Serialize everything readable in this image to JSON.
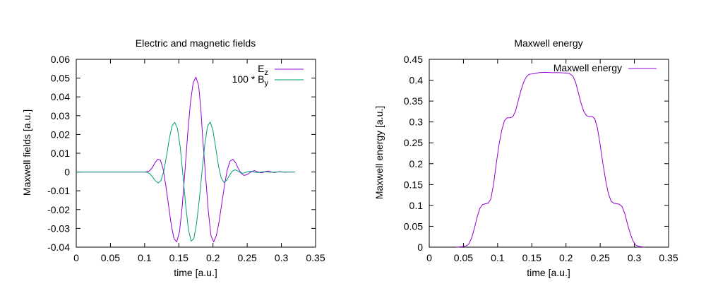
{
  "chart_data": [
    {
      "type": "line",
      "title": "Electric and magnetic fields",
      "xlabel": "time [a.u.]",
      "ylabel": "Maxwell fields [a.u.]",
      "xlim": [
        0,
        0.35
      ],
      "ylim": [
        -0.04,
        0.06
      ],
      "xticks": [
        0,
        0.05,
        0.1,
        0.15,
        0.2,
        0.25,
        0.3,
        0.35
      ],
      "xtick_labels": [
        "0",
        "0.05",
        "0.1",
        "0.15",
        "0.2",
        "0.25",
        "0.3",
        "0.35"
      ],
      "yticks": [
        -0.04,
        -0.03,
        -0.02,
        -0.01,
        0,
        0.01,
        0.02,
        0.03,
        0.04,
        0.05,
        0.06
      ],
      "ytick_labels": [
        "-0.04",
        "-0.03",
        "-0.02",
        "-0.01",
        "0",
        "0.01",
        "0.02",
        "0.03",
        "0.04",
        "0.05",
        "0.06"
      ],
      "legend_position": "top-right",
      "series": [
        {
          "name": "E",
          "name_subscript": "z",
          "color": "#9400d3",
          "x": [
            0,
            0.1,
            0.103,
            0.107,
            0.111,
            0.115,
            0.119,
            0.123,
            0.127,
            0.131,
            0.135,
            0.139,
            0.143,
            0.147,
            0.151,
            0.155,
            0.159,
            0.163,
            0.167,
            0.171,
            0.175,
            0.179,
            0.182,
            0.185,
            0.189,
            0.193,
            0.197,
            0.201,
            0.205,
            0.209,
            0.213,
            0.217,
            0.221,
            0.225,
            0.229,
            0.233,
            0.237,
            0.241,
            0.245,
            0.249,
            0.253,
            0.257,
            0.261,
            0.265,
            0.269,
            0.273,
            0.277,
            0.281,
            0.285,
            0.289,
            0.293,
            0.297,
            0.301,
            0.305,
            0.309,
            0.313,
            0.317,
            0.32
          ],
          "y": [
            0,
            0,
            0.0002,
            0.0006,
            0.0022,
            0.0048,
            0.0068,
            0.0064,
            0.0017,
            -0.0072,
            -0.0178,
            -0.0283,
            -0.0355,
            -0.0372,
            -0.0317,
            -0.0182,
            0.0006,
            0.0204,
            0.037,
            0.0475,
            0.0505,
            0.046,
            0.0345,
            0.0178,
            -0.0016,
            -0.0203,
            -0.0339,
            -0.0372,
            -0.0337,
            -0.0262,
            -0.0163,
            -0.0066,
            0.0014,
            0.0058,
            0.0068,
            0.005,
            0.0019,
            -0.0006,
            -0.0018,
            -0.0015,
            -0.0006,
            0.0004,
            0.0007,
            0.0002,
            -0.0004,
            -0.0003,
            0.0003,
            0.0005,
            0.0001,
            -0.0003,
            -0.0001,
            0.0002,
            0.0001,
            -0.0001,
            0,
            0,
            0,
            0
          ]
        },
        {
          "name": "100 * B",
          "name_subscript": "y",
          "color": "#009e73",
          "x": [
            0,
            0.1,
            0.104,
            0.108,
            0.112,
            0.116,
            0.12,
            0.124,
            0.128,
            0.132,
            0.136,
            0.14,
            0.144,
            0.148,
            0.152,
            0.156,
            0.16,
            0.164,
            0.168,
            0.172,
            0.176,
            0.18,
            0.184,
            0.188,
            0.192,
            0.196,
            0.2,
            0.204,
            0.208,
            0.212,
            0.216,
            0.22,
            0.224,
            0.228,
            0.232,
            0.236,
            0.24,
            0.244,
            0.248,
            0.252,
            0.256,
            0.26,
            0.264,
            0.268,
            0.272,
            0.276,
            0.28,
            0.284,
            0.288,
            0.292,
            0.296,
            0.3,
            0.304,
            0.308,
            0.312,
            0.316,
            0.32
          ],
          "y": [
            0,
            0,
            -0.0002,
            -0.001,
            -0.0028,
            -0.0048,
            -0.0058,
            -0.0045,
            0.0005,
            0.0085,
            0.0175,
            0.0245,
            0.0265,
            0.0232,
            0.0135,
            -0.0015,
            -0.0175,
            -0.0305,
            -0.0368,
            -0.0355,
            -0.0272,
            -0.0145,
            0.0005,
            0.0145,
            0.0245,
            0.0266,
            0.022,
            0.0128,
            0.0032,
            -0.0032,
            -0.0055,
            -0.0044,
            -0.0018,
            0.0004,
            0.0012,
            0.0006,
            -0.0003,
            -0.0006,
            -0.0002,
            0.0003,
            0.0004,
            0,
            -0.0003,
            -0.0002,
            0.0001,
            0.0002,
            0,
            -0.0001,
            -0.0001,
            0,
            0.0001,
            0,
            0,
            0,
            0,
            0,
            0
          ]
        }
      ]
    },
    {
      "type": "line",
      "title": "Maxwell energy",
      "xlabel": "time [a.u.]",
      "ylabel": "Maxwell energy [a.u.]",
      "xlim": [
        0,
        0.35
      ],
      "ylim": [
        0,
        0.45
      ],
      "xticks": [
        0,
        0.05,
        0.1,
        0.15,
        0.2,
        0.25,
        0.3,
        0.35
      ],
      "xtick_labels": [
        "0",
        "0.05",
        "0.1",
        "0.15",
        "0.2",
        "0.25",
        "0.3",
        "0.35"
      ],
      "yticks": [
        0,
        0.05,
        0.1,
        0.15,
        0.2,
        0.25,
        0.3,
        0.35,
        0.4,
        0.45
      ],
      "ytick_labels": [
        "0",
        "0.05",
        "0.1",
        "0.15",
        "0.2",
        "0.25",
        "0.3",
        "0.35",
        "0.4",
        "0.45"
      ],
      "legend_position": "top-right",
      "series": [
        {
          "name": "Maxwell energy",
          "name_subscript": "",
          "color": "#9400d3",
          "x": [
            0.04,
            0.048,
            0.054,
            0.058,
            0.062,
            0.066,
            0.07,
            0.074,
            0.078,
            0.082,
            0.086,
            0.09,
            0.094,
            0.098,
            0.102,
            0.106,
            0.11,
            0.114,
            0.118,
            0.122,
            0.126,
            0.13,
            0.134,
            0.138,
            0.142,
            0.146,
            0.15,
            0.155,
            0.16,
            0.17,
            0.18,
            0.19,
            0.2,
            0.205,
            0.21,
            0.214,
            0.218,
            0.222,
            0.226,
            0.23,
            0.234,
            0.238,
            0.242,
            0.246,
            0.25,
            0.254,
            0.258,
            0.262,
            0.266,
            0.27,
            0.274,
            0.278,
            0.282,
            0.286,
            0.29,
            0.294,
            0.298,
            0.302,
            0.306,
            0.31,
            0.315
          ],
          "y": [
            0,
            0.001,
            0.003,
            0.008,
            0.022,
            0.045,
            0.072,
            0.093,
            0.102,
            0.104,
            0.105,
            0.115,
            0.15,
            0.2,
            0.245,
            0.28,
            0.303,
            0.31,
            0.31,
            0.312,
            0.325,
            0.35,
            0.375,
            0.395,
            0.408,
            0.414,
            0.415,
            0.416,
            0.418,
            0.419,
            0.418,
            0.418,
            0.417,
            0.416,
            0.41,
            0.395,
            0.37,
            0.345,
            0.325,
            0.315,
            0.313,
            0.313,
            0.308,
            0.285,
            0.245,
            0.2,
            0.16,
            0.128,
            0.11,
            0.105,
            0.104,
            0.103,
            0.097,
            0.08,
            0.055,
            0.032,
            0.015,
            0.005,
            0.002,
            0.001,
            0
          ]
        }
      ]
    }
  ]
}
